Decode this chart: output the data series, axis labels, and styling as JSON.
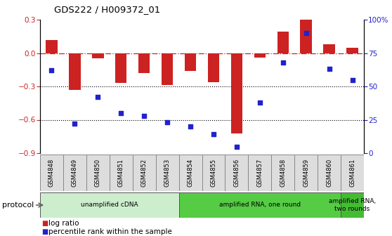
{
  "title": "GDS222 / H009372_01",
  "samples": [
    "GSM4848",
    "GSM4849",
    "GSM4850",
    "GSM4851",
    "GSM4852",
    "GSM4853",
    "GSM4854",
    "GSM4855",
    "GSM4856",
    "GSM4857",
    "GSM4858",
    "GSM4859",
    "GSM4860",
    "GSM4861"
  ],
  "log_ratio": [
    0.12,
    -0.33,
    -0.05,
    -0.27,
    -0.18,
    -0.29,
    -0.16,
    -0.26,
    -0.72,
    -0.04,
    0.19,
    0.3,
    0.08,
    0.05
  ],
  "percentile": [
    62,
    22,
    42,
    30,
    28,
    23,
    20,
    14,
    5,
    38,
    68,
    90,
    63,
    55
  ],
  "bar_color": "#cc2222",
  "dot_color": "#2222cc",
  "ylim_left": [
    -0.9,
    0.3
  ],
  "ylim_right": [
    0,
    100
  ],
  "yticks_left": [
    -0.9,
    -0.6,
    -0.3,
    0.0,
    0.3
  ],
  "yticks_right": [
    0,
    25,
    50,
    75,
    100
  ],
  "protocols": [
    {
      "label": "unamplified cDNA",
      "start": 0,
      "end": 5,
      "color": "#cceecc"
    },
    {
      "label": "amplified RNA, one round",
      "start": 6,
      "end": 12,
      "color": "#55cc44"
    },
    {
      "label": "amplified RNA,\ntwo rounds",
      "start": 13,
      "end": 13,
      "color": "#44bb33"
    }
  ],
  "legend_items": [
    {
      "label": "log ratio",
      "color": "#cc2222"
    },
    {
      "label": "percentile rank within the sample",
      "color": "#2222cc"
    }
  ],
  "background_color": "#ffffff",
  "sample_box_color": "#dddddd",
  "protocol_label": "protocol"
}
